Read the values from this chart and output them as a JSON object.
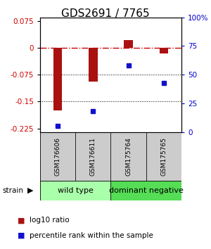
{
  "title": "GDS2691 / 7765",
  "samples": [
    "GSM176606",
    "GSM176611",
    "GSM175764",
    "GSM175765"
  ],
  "log10_ratio": [
    -0.175,
    -0.095,
    0.022,
    -0.015
  ],
  "percentile_rank": [
    5,
    18,
    58,
    43
  ],
  "bar_color": "#aa1111",
  "dot_color": "#1111cc",
  "ylim_left": [
    -0.235,
    0.085
  ],
  "ylim_right": [
    0,
    100
  ],
  "yticks_left": [
    0.075,
    0,
    -0.075,
    -0.15,
    -0.225
  ],
  "yticks_left_labels": [
    "0.075",
    "0",
    "-0.075",
    "-0.15",
    "-0.225"
  ],
  "yticks_right": [
    100,
    75,
    50,
    25,
    0
  ],
  "yticks_right_labels": [
    "100%",
    "75",
    "50",
    "25",
    "0"
  ],
  "hline_zero_color": "#cc0000",
  "hline_dotted_color": "#000000",
  "groups": [
    {
      "label": "wild type",
      "samples": [
        0,
        1
      ],
      "color": "#aaffaa"
    },
    {
      "label": "dominant negative",
      "samples": [
        2,
        3
      ],
      "color": "#55dd55"
    }
  ],
  "strain_label": "strain",
  "legend_red": "log10 ratio",
  "legend_blue": "percentile rank within the sample",
  "bar_width": 0.25,
  "sample_box_color": "#cccccc",
  "title_fontsize": 11,
  "tick_fontsize": 7.5,
  "sample_fontsize": 6.5,
  "group_label_fontsize": 8
}
